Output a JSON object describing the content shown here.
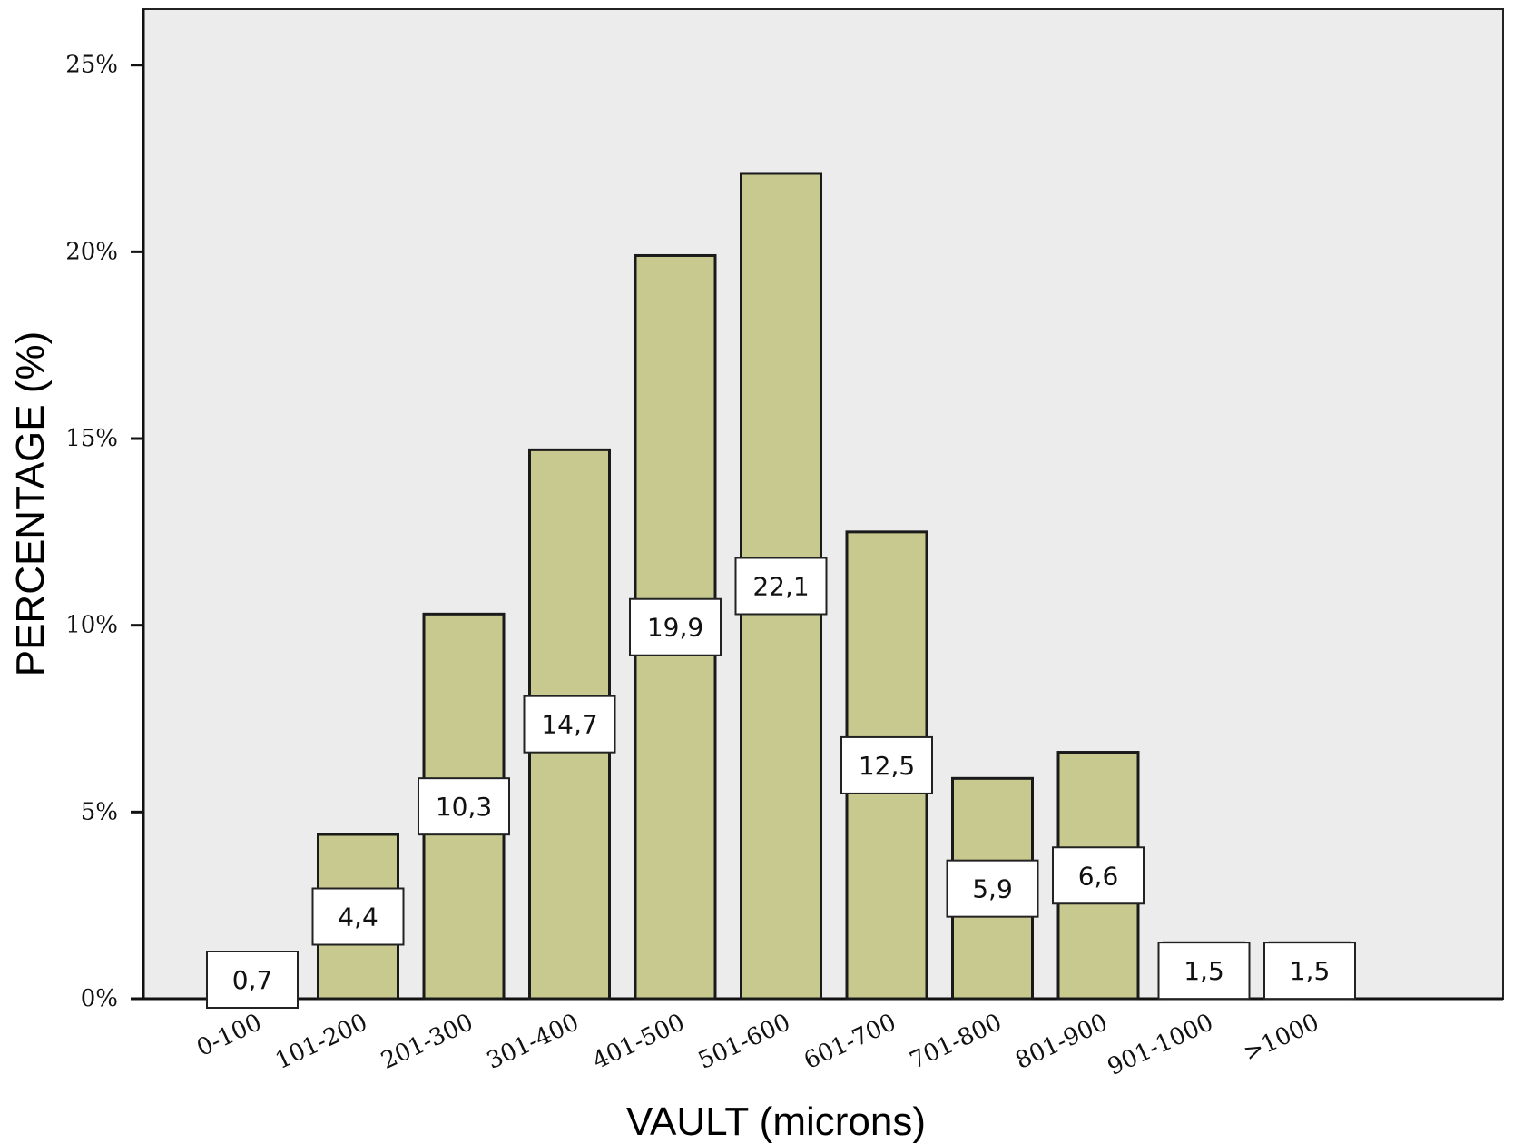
{
  "chart_data": {
    "type": "bar",
    "title": "",
    "xlabel": "VAULT (microns)",
    "ylabel": "PERCENTAGE (%)",
    "categories": [
      "0-100",
      "101-200",
      "201-300",
      "301-400",
      "401-500",
      "501-600",
      "601-700",
      "701-800",
      "801-900",
      "901-1000",
      ">1000"
    ],
    "values": [
      0.7,
      4.4,
      10.3,
      14.7,
      19.9,
      22.1,
      12.5,
      5.9,
      6.6,
      1.5,
      1.5
    ],
    "data_labels": [
      "0,7",
      "4,4",
      "10,3",
      "14,7",
      "19,9",
      "22,1",
      "12,5",
      "5,9",
      "6,6",
      "1,5",
      "1,5"
    ],
    "ylim": [
      0,
      26.5
    ],
    "yticks": [
      0,
      5,
      10,
      15,
      20,
      25
    ],
    "ytick_labels": [
      "0%",
      "5%",
      "10%",
      "15%",
      "20%",
      "25%"
    ],
    "grid": false,
    "legend": "none",
    "colors": {
      "bar_fill": "#c8c98f",
      "bar_stroke": "#1a1a1a",
      "plot_background": "#ececec",
      "label_box": "#ffffff"
    }
  }
}
